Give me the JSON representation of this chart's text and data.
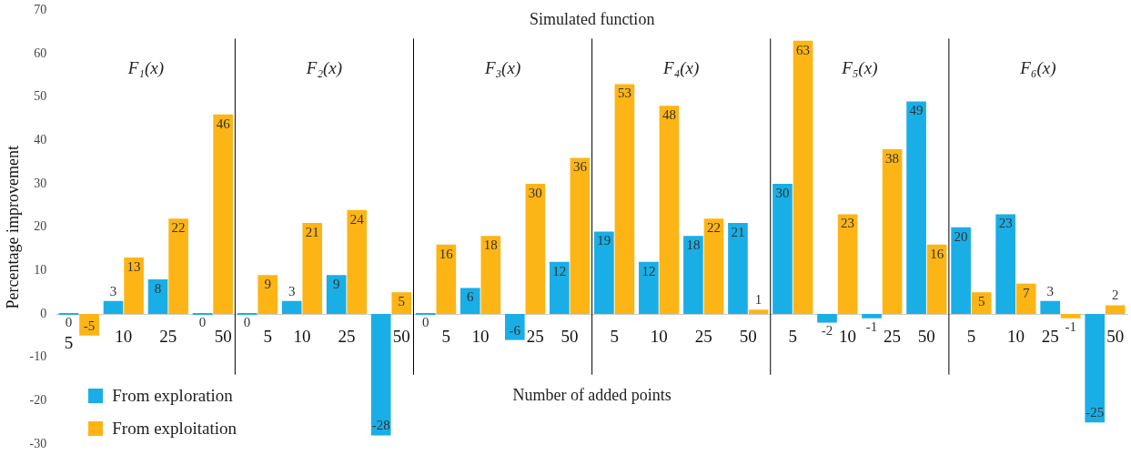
{
  "chart_data": {
    "type": "bar",
    "title": "Simulated function",
    "xlabel": "Number of added points",
    "ylabel": "Percentage improvement",
    "categories": [
      "5",
      "10",
      "25",
      "50",
      "5",
      "10",
      "25",
      "50",
      "5",
      "10",
      "25",
      "50",
      "5",
      "10",
      "25",
      "50",
      "5",
      "10",
      "25",
      "50",
      "5",
      "10",
      "25",
      "50"
    ],
    "series": [
      {
        "name": "From exploration",
        "color": "#1aaee6",
        "values": [
          0,
          3,
          8,
          0,
          0,
          3,
          9,
          -28,
          0,
          6,
          -6,
          12,
          19,
          12,
          18,
          21,
          30,
          -2,
          -1,
          49,
          20,
          23,
          3,
          -25
        ]
      },
      {
        "name": "From exploitation",
        "color": "#fdb515",
        "values": [
          -5,
          13,
          22,
          46,
          9,
          21,
          24,
          5,
          16,
          18,
          30,
          36,
          53,
          48,
          22,
          1,
          63,
          23,
          38,
          16,
          5,
          7,
          -1,
          2
        ]
      }
    ],
    "annotations": [
      "F₁(x)",
      "F₂(x)",
      "F₃(x)",
      "F₄(x)",
      "F₅(x)",
      "F₆(x)"
    ],
    "ylim": [
      -30,
      70
    ],
    "yticks": [
      -30,
      -20,
      -10,
      0,
      10,
      20,
      30,
      40,
      50,
      60,
      70
    ],
    "grid": false,
    "legend": "bottom left",
    "data_labels": true
  }
}
